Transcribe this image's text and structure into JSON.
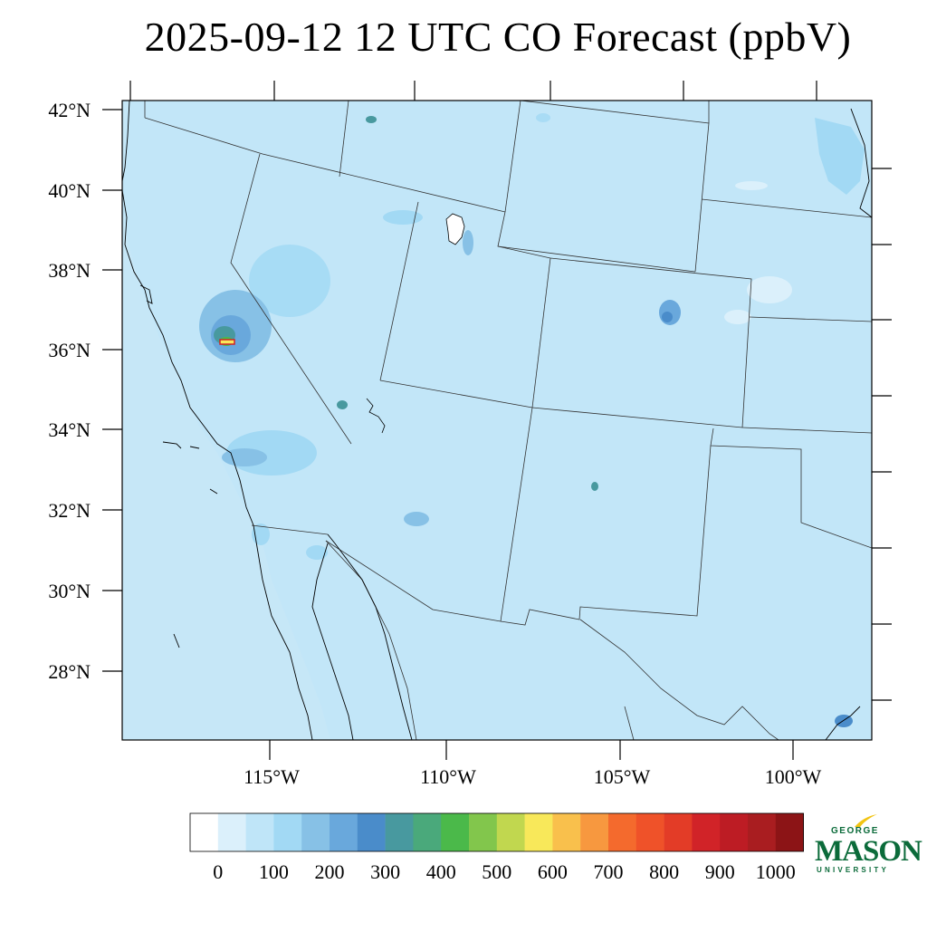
{
  "title": "2025-09-12 12 UTC CO Forecast (ppbV)",
  "map": {
    "lat_labels": [
      "42°N",
      "40°N",
      "38°N",
      "36°N",
      "34°N",
      "32°N",
      "30°N",
      "28°N"
    ],
    "lon_labels": [
      "115°W",
      "110°W",
      "105°W",
      "100°W"
    ],
    "ocean_color": "#c6e7f7",
    "background_color": "#c2e6f8"
  },
  "colorbar": {
    "levels": [
      "0",
      "100",
      "200",
      "300",
      "400",
      "500",
      "600",
      "700",
      "800",
      "900",
      "1000"
    ],
    "colors": [
      "#ffffff",
      "#dbf0fb",
      "#bfe5f8",
      "#a2d9f4",
      "#87c1e6",
      "#69a8dc",
      "#4a8cca",
      "#48999f",
      "#4aa97b",
      "#4bb94a",
      "#82c64c",
      "#c1d74f",
      "#f8e85a",
      "#f9c04c",
      "#f7983f",
      "#f46a2d",
      "#ef5229",
      "#e33c27",
      "#d12328",
      "#bd1c24",
      "#a91d20",
      "#8c1416"
    ]
  },
  "logo": {
    "line1": "GEORGE",
    "line2": "MASON",
    "line3": "UNIVERSITY",
    "accent": "#f2c413",
    "brand": "#0b6b3a"
  }
}
